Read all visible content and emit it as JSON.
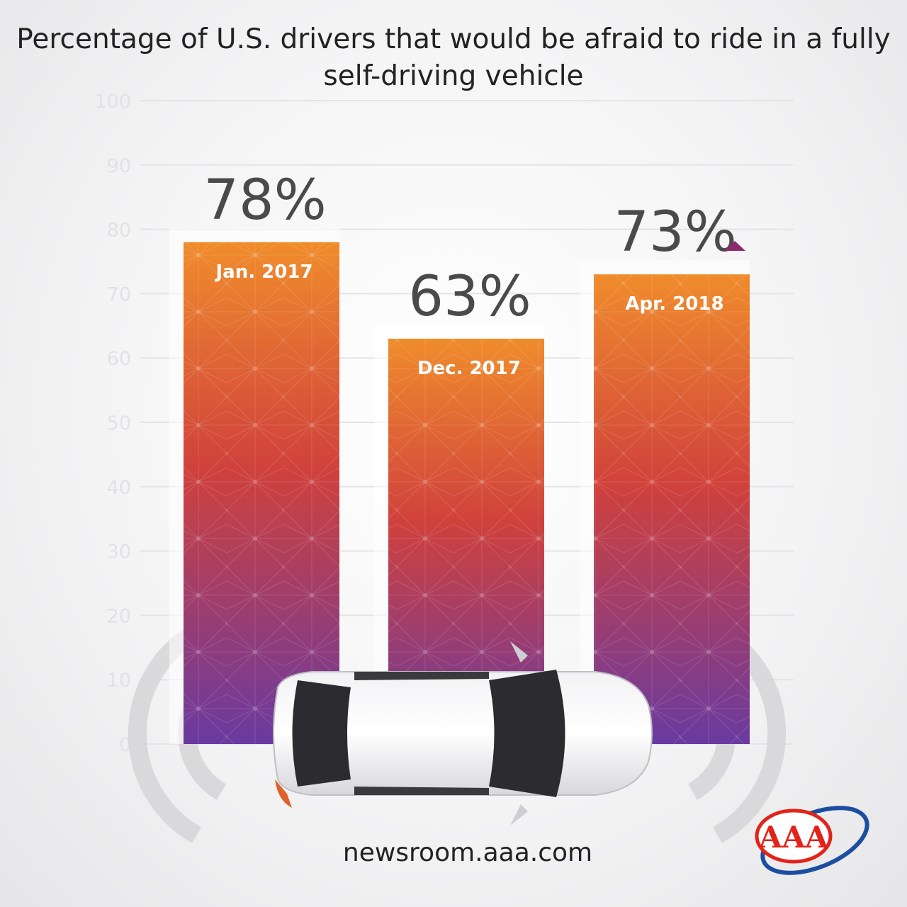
{
  "chart_data": {
    "type": "bar",
    "title": "Percentage of U.S. drivers that would be afraid to ride in a fully self-driving vehicle",
    "categories": [
      "Jan. 2017",
      "Dec. 2017",
      "Apr. 2018"
    ],
    "values": [
      78,
      63,
      73
    ],
    "value_labels": [
      "78%",
      "63%",
      "73%"
    ],
    "ylim": [
      0,
      100
    ],
    "yticks": [
      "0",
      "10",
      "20",
      "30",
      "40",
      "50",
      "60",
      "70",
      "80",
      "90",
      "100"
    ],
    "grid": true,
    "increase_marker_on": "Apr. 2018",
    "colors": {
      "bar_top": "#f08c2c",
      "bar_mid": "#d0413c",
      "bar_bottom": "#6a3aa0",
      "marker": "#8a2a6a"
    }
  },
  "footer": {
    "url": "newsroom.aaa.com"
  },
  "logo": {
    "text": "AAA",
    "colors": {
      "red": "#e2231a",
      "blue": "#1b4ea0"
    }
  }
}
